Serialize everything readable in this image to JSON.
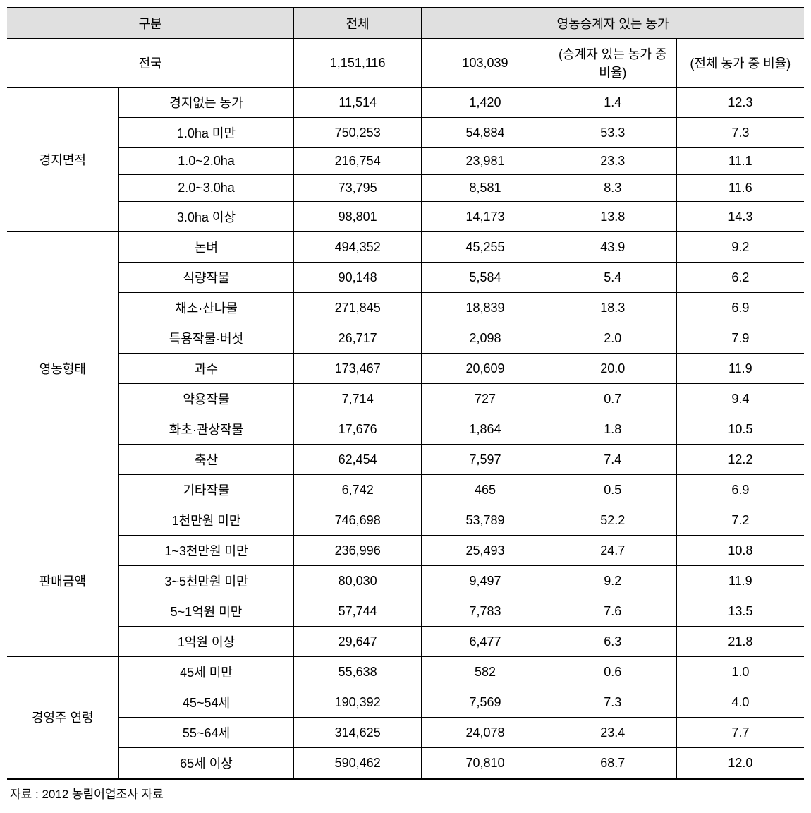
{
  "headers": {
    "category": "구분",
    "total": "전체",
    "successor_group": "영농승계자 있는 농가",
    "national": "전국",
    "national_total": "1,151,116",
    "national_succ": "103,039",
    "ratio_in_succ": "(승계자 있는 농가 중 비율)",
    "ratio_in_total": "(전체 농가 중 비율)"
  },
  "groups": [
    {
      "label": "경지면적",
      "rows": [
        {
          "sub": "경지없는 농가",
          "total": "11,514",
          "succ": "1,420",
          "r1": "1.4",
          "r2": "12.3"
        },
        {
          "sub": "1.0ha 미만",
          "total": "750,253",
          "succ": "54,884",
          "r1": "53.3",
          "r2": "7.3"
        },
        {
          "sub": "1.0~2.0ha",
          "total": "216,754",
          "succ": "23,981",
          "r1": "23.3",
          "r2": "11.1"
        },
        {
          "sub": "2.0~3.0ha",
          "total": "73,795",
          "succ": "8,581",
          "r1": "8.3",
          "r2": "11.6"
        },
        {
          "sub": "3.0ha 이상",
          "total": "98,801",
          "succ": "14,173",
          "r1": "13.8",
          "r2": "14.3"
        }
      ]
    },
    {
      "label": "영농형태",
      "rows": [
        {
          "sub": "논벼",
          "total": "494,352",
          "succ": "45,255",
          "r1": "43.9",
          "r2": "9.2"
        },
        {
          "sub": "식량작물",
          "total": "90,148",
          "succ": "5,584",
          "r1": "5.4",
          "r2": "6.2"
        },
        {
          "sub": "채소·산나물",
          "total": "271,845",
          "succ": "18,839",
          "r1": "18.3",
          "r2": "6.9"
        },
        {
          "sub": "특용작물·버섯",
          "total": "26,717",
          "succ": "2,098",
          "r1": "2.0",
          "r2": "7.9"
        },
        {
          "sub": "과수",
          "total": "173,467",
          "succ": "20,609",
          "r1": "20.0",
          "r2": "11.9"
        },
        {
          "sub": "약용작물",
          "total": "7,714",
          "succ": "727",
          "r1": "0.7",
          "r2": "9.4"
        },
        {
          "sub": "화초·관상작물",
          "total": "17,676",
          "succ": "1,864",
          "r1": "1.8",
          "r2": "10.5"
        },
        {
          "sub": "축산",
          "total": "62,454",
          "succ": "7,597",
          "r1": "7.4",
          "r2": "12.2"
        },
        {
          "sub": "기타작물",
          "total": "6,742",
          "succ": "465",
          "r1": "0.5",
          "r2": "6.9"
        }
      ]
    },
    {
      "label": "판매금액",
      "rows": [
        {
          "sub": "1천만원 미만",
          "total": "746,698",
          "succ": "53,789",
          "r1": "52.2",
          "r2": "7.2"
        },
        {
          "sub": "1~3천만원 미만",
          "total": "236,996",
          "succ": "25,493",
          "r1": "24.7",
          "r2": "10.8"
        },
        {
          "sub": "3~5천만원 미만",
          "total": "80,030",
          "succ": "9,497",
          "r1": "9.2",
          "r2": "11.9"
        },
        {
          "sub": "5~1억원 미만",
          "total": "57,744",
          "succ": "7,783",
          "r1": "7.6",
          "r2": "13.5"
        },
        {
          "sub": "1억원 이상",
          "total": "29,647",
          "succ": "6,477",
          "r1": "6.3",
          "r2": "21.8"
        }
      ]
    },
    {
      "label": "경영주 연령",
      "rows": [
        {
          "sub": "45세 미만",
          "total": "55,638",
          "succ": "582",
          "r1": "0.6",
          "r2": "1.0"
        },
        {
          "sub": "45~54세",
          "total": "190,392",
          "succ": "7,569",
          "r1": "7.3",
          "r2": "4.0"
        },
        {
          "sub": "55~64세",
          "total": "314,625",
          "succ": "24,078",
          "r1": "23.4",
          "r2": "7.7"
        },
        {
          "sub": "65세 이상",
          "total": "590,462",
          "succ": "70,810",
          "r1": "68.7",
          "r2": "12.0"
        }
      ]
    }
  ],
  "source": "자료 : 2012 농림어업조사 자료"
}
